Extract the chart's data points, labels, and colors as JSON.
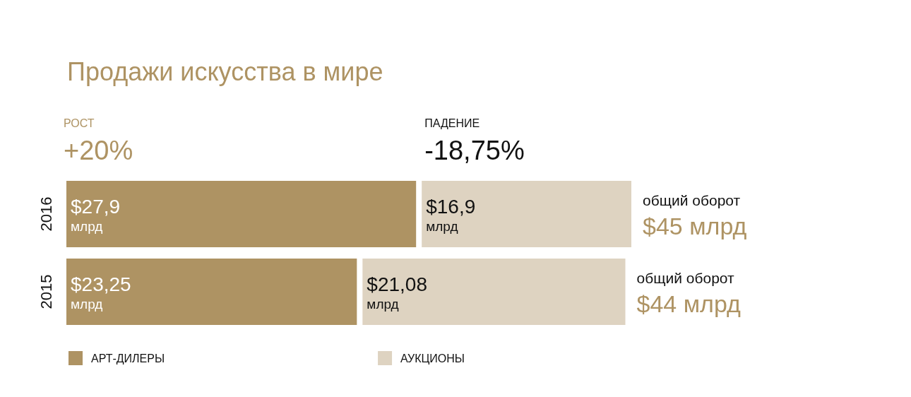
{
  "chart_data": {
    "type": "bar",
    "orientation": "horizontal",
    "stacked": true,
    "title": "Продажи искусства в мире",
    "categories": [
      "2016",
      "2015"
    ],
    "series": [
      {
        "name": "АРТ-ДИЛЕРЫ",
        "color": "#ae9363",
        "values": [
          27.9,
          23.25
        ],
        "value_labels": [
          "$27,9 млрд",
          "$23,25 млрд"
        ]
      },
      {
        "name": "АУКЦИОНЫ",
        "color": "#ded3c1",
        "values": [
          16.9,
          21.08
        ],
        "value_labels": [
          "$16,9 млрд",
          "$21,08 млрд"
        ]
      }
    ],
    "totals": [
      "общий оборот\n$45 млрд",
      "общий оборот\n$44 млрд"
    ],
    "annotations": [
      "РОСТ",
      "+20%",
      "ПАДЕНИЕ",
      "-18,75%"
    ],
    "legend": "bottom left"
  }
}
